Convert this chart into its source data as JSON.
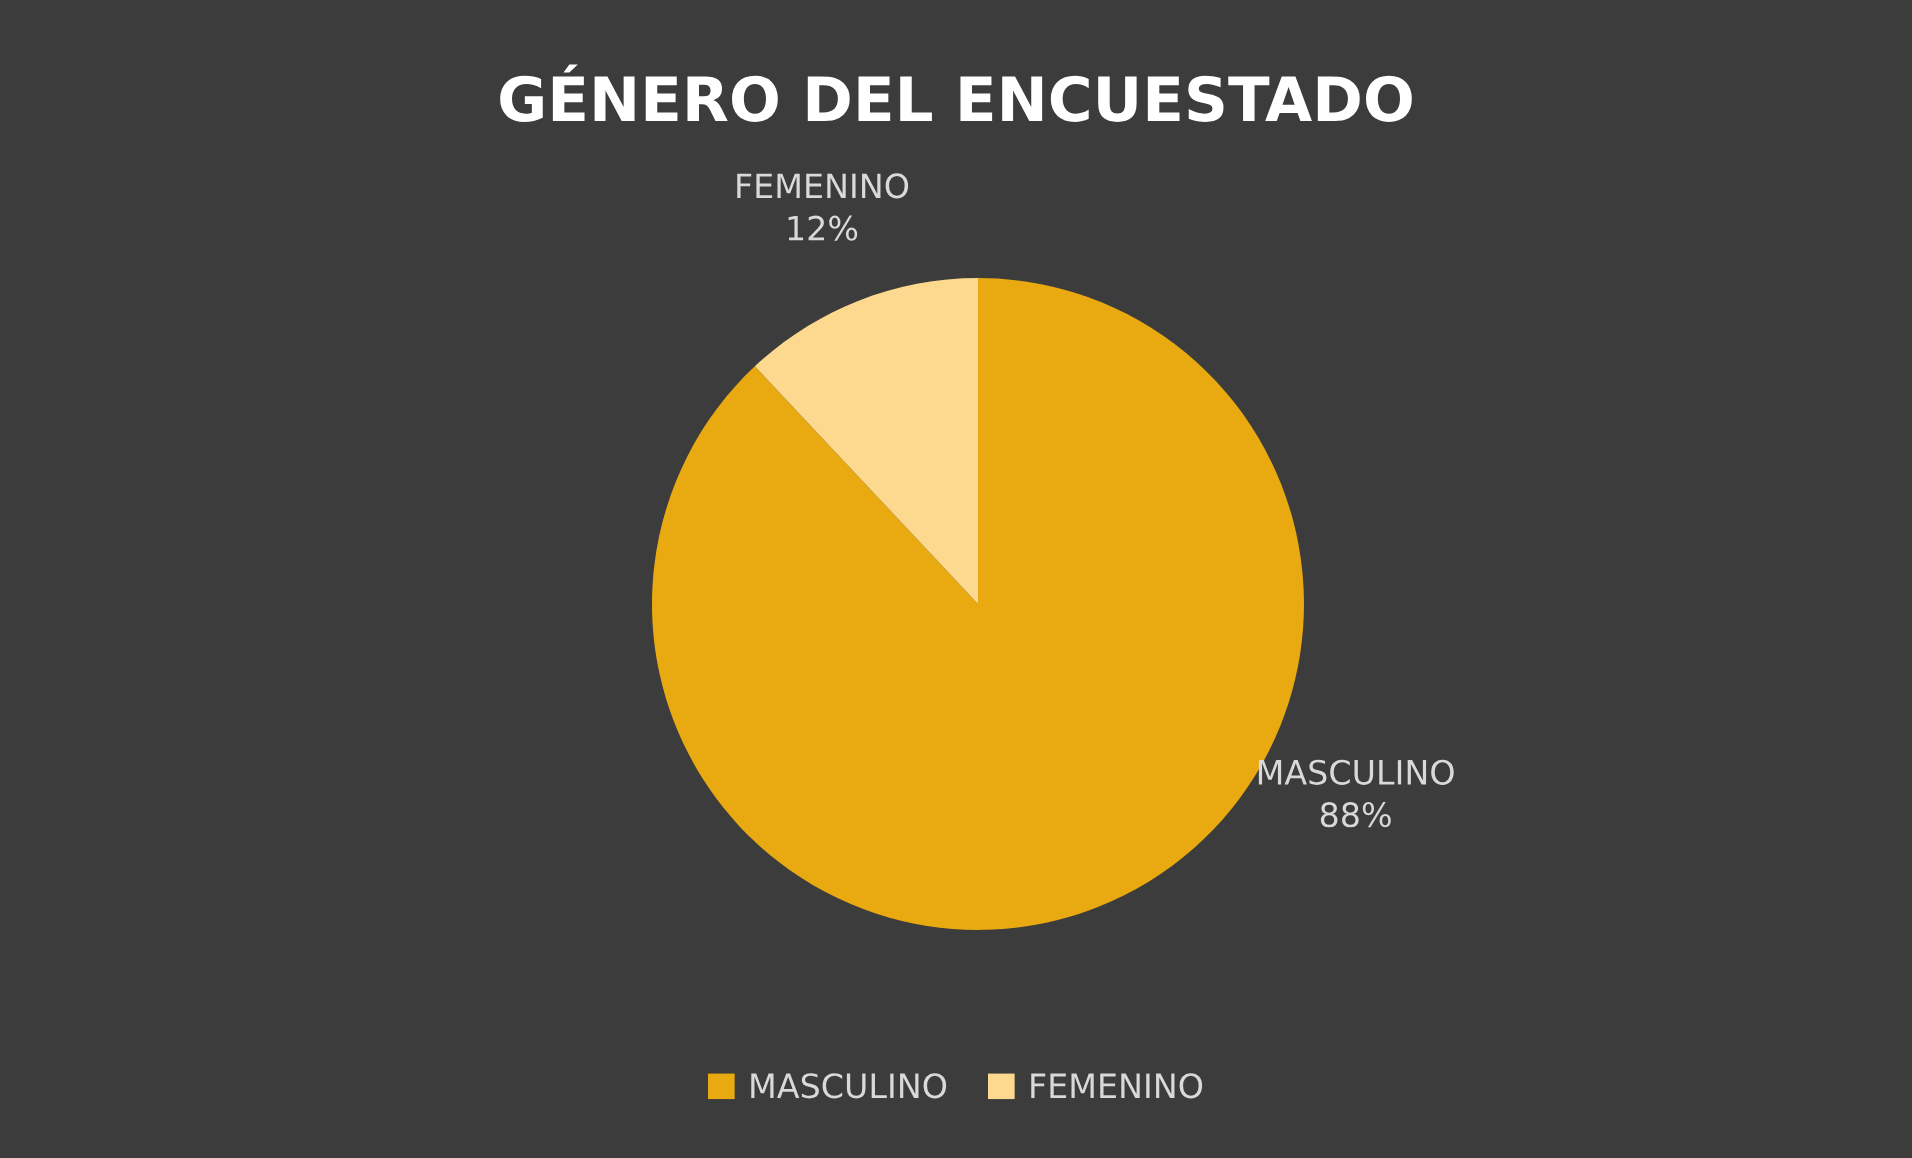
{
  "chart_data": {
    "type": "pie",
    "title": "GÉNERO DEL ENCUESTADO",
    "categories": [
      "MASCULINO",
      "FEMENINO"
    ],
    "values": [
      88,
      12
    ],
    "colors": [
      "#e8aa10",
      "#fcd98f"
    ],
    "value_labels": [
      "88%",
      "12%"
    ],
    "legend": "bottom"
  }
}
